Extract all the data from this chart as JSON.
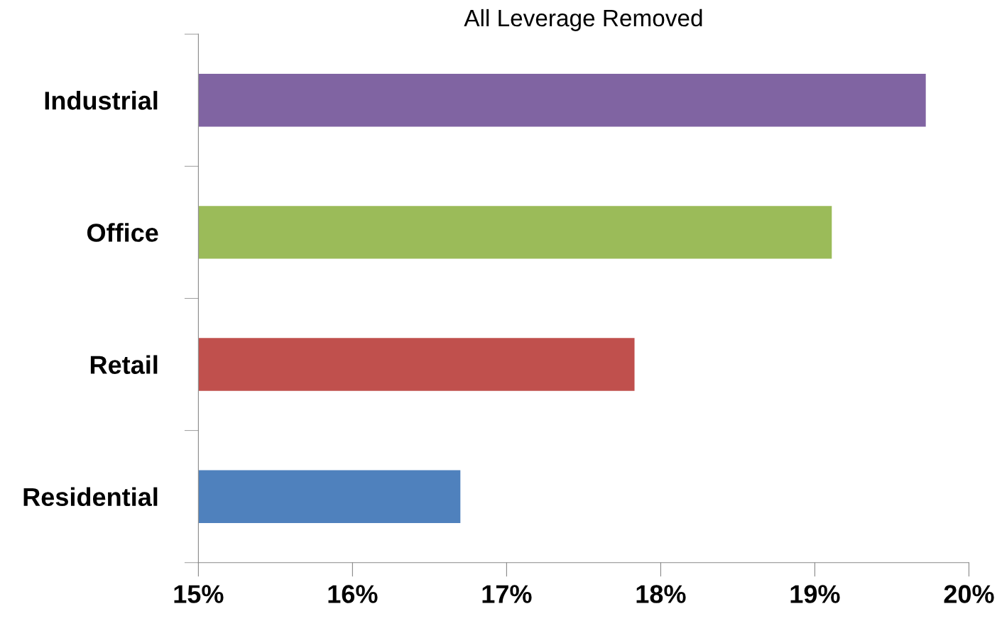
{
  "chart_data": {
    "type": "bar",
    "orientation": "horizontal",
    "title": "All Leverage Removed",
    "categories": [
      "Industrial",
      "Office",
      "Retail",
      "Residential"
    ],
    "values": [
      19.72,
      19.11,
      17.83,
      16.7
    ],
    "colors": [
      "#8064a2",
      "#9bbb59",
      "#c0504d",
      "#4f81bd"
    ],
    "xlim": [
      15,
      20
    ],
    "xticks": [
      {
        "value": 15,
        "label": "15%"
      },
      {
        "value": 16,
        "label": "16%"
      },
      {
        "value": 17,
        "label": "17%"
      },
      {
        "value": 18,
        "label": "18%"
      },
      {
        "value": 19,
        "label": "19%"
      },
      {
        "value": 20,
        "label": "20%"
      }
    ],
    "grid": false,
    "legend": false
  }
}
